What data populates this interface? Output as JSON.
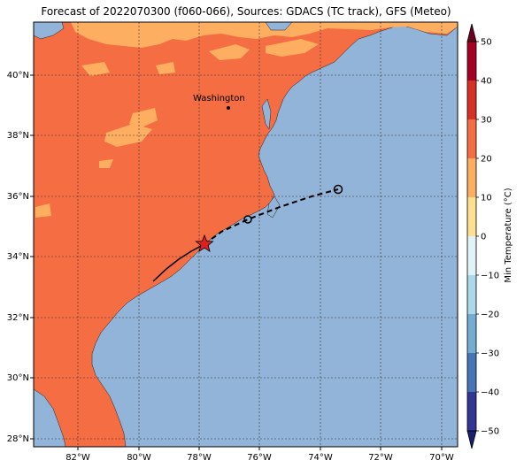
{
  "title": "Forecast of 2022070300 (f060-066), Sources: GDACS (TC track), GFS (Meteo)",
  "colorbar": {
    "label": "Min Temperature (°C)",
    "ticks": [
      "50",
      "40",
      "30",
      "20",
      "10",
      "0",
      "−10",
      "−20",
      "−30",
      "−40",
      "−50"
    ],
    "colors": [
      "#6b0021",
      "#a50026",
      "#d73027",
      "#f46d43",
      "#fdae61",
      "#fee090",
      "#e0f3f8",
      "#abd9e9",
      "#74add1",
      "#4575b4",
      "#313695",
      "#1a1f70"
    ]
  },
  "map": {
    "lat_labels": [
      "28°N",
      "30°N",
      "32°N",
      "34°N",
      "36°N",
      "38°N",
      "40°N"
    ],
    "lon_labels": [
      "82°W",
      "80°W",
      "78°W",
      "76°W",
      "74°W",
      "72°W",
      "70°W"
    ],
    "city": "Washington",
    "land_color": "#f46d43",
    "warm_color": "#fdae61",
    "ocean_color": "#92b4d8"
  }
}
